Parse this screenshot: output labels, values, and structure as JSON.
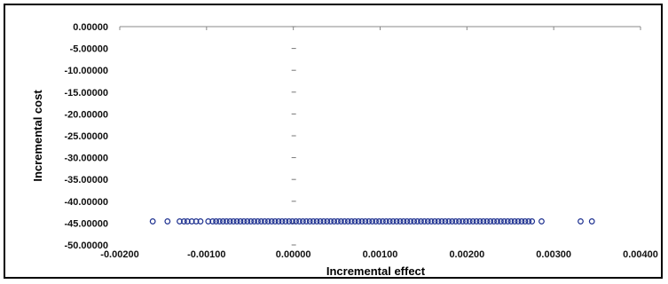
{
  "chart_data": {
    "type": "scatter",
    "title": "",
    "xlabel": "Incremental effect",
    "ylabel": "Incremental cost",
    "xlim": [
      -0.002,
      0.004
    ],
    "ylim": [
      -50,
      0
    ],
    "x_ticks": [
      "-0.00200",
      "-0.00100",
      "0.00000",
      "0.00100",
      "0.00200",
      "0.00300",
      "0.00400"
    ],
    "y_ticks": [
      "0.00000",
      "-5.00000",
      "-10.00000",
      "-15.00000",
      "-20.00000",
      "-25.00000",
      "-30.00000",
      "-35.00000",
      "-40.00000",
      "-45.00000",
      "-50.00000"
    ],
    "grid": false,
    "marker": "hollow-circle",
    "marker_color": "#1c2f8f",
    "series": [
      {
        "x": [
          -0.00162,
          -0.00145,
          -0.00131,
          -0.00126,
          -0.00122,
          -0.00117,
          -0.00112,
          -0.00107,
          -0.00098,
          -0.00093,
          -0.00089,
          -0.00085,
          -0.00081,
          -0.00077,
          -0.00073,
          -0.00069,
          -0.00065,
          -0.00061,
          -0.00057,
          -0.00053,
          -0.00049,
          -0.00045,
          -0.00041,
          -0.00037,
          -0.00033,
          -0.00029,
          -0.00025,
          -0.00021,
          -0.00017,
          -0.00013,
          -9e-05,
          -5e-05,
          -1e-05,
          3e-05,
          7e-05,
          0.00011,
          0.00015,
          0.00019,
          0.00023,
          0.00027,
          0.00031,
          0.00035,
          0.00039,
          0.00043,
          0.00047,
          0.00051,
          0.00055,
          0.00059,
          0.00063,
          0.00067,
          0.00071,
          0.00075,
          0.00079,
          0.00083,
          0.00087,
          0.00091,
          0.00095,
          0.00099,
          0.00103,
          0.00107,
          0.00111,
          0.00115,
          0.00119,
          0.00123,
          0.00127,
          0.00131,
          0.00135,
          0.00139,
          0.00143,
          0.00147,
          0.00151,
          0.00155,
          0.00159,
          0.00163,
          0.00167,
          0.00171,
          0.00175,
          0.00179,
          0.00183,
          0.00187,
          0.00191,
          0.00195,
          0.00199,
          0.00203,
          0.00207,
          0.00211,
          0.00215,
          0.00219,
          0.00223,
          0.00227,
          0.00231,
          0.00235,
          0.00239,
          0.00243,
          0.00247,
          0.00251,
          0.00255,
          0.00259,
          0.00263,
          0.00267,
          0.00271,
          0.00275,
          0.00286,
          0.00331,
          0.00344
        ],
        "y": [
          -44.6,
          -44.6,
          -44.6,
          -44.6,
          -44.6,
          -44.6,
          -44.6,
          -44.6,
          -44.6,
          -44.6,
          -44.6,
          -44.6,
          -44.6,
          -44.6,
          -44.6,
          -44.6,
          -44.6,
          -44.6,
          -44.6,
          -44.6,
          -44.6,
          -44.6,
          -44.6,
          -44.6,
          -44.6,
          -44.6,
          -44.6,
          -44.6,
          -44.6,
          -44.6,
          -44.6,
          -44.6,
          -44.6,
          -44.6,
          -44.6,
          -44.6,
          -44.6,
          -44.6,
          -44.6,
          -44.6,
          -44.6,
          -44.6,
          -44.6,
          -44.6,
          -44.6,
          -44.6,
          -44.6,
          -44.6,
          -44.6,
          -44.6,
          -44.6,
          -44.6,
          -44.6,
          -44.6,
          -44.6,
          -44.6,
          -44.6,
          -44.6,
          -44.6,
          -44.6,
          -44.6,
          -44.6,
          -44.6,
          -44.6,
          -44.6,
          -44.6,
          -44.6,
          -44.6,
          -44.6,
          -44.6,
          -44.6,
          -44.6,
          -44.6,
          -44.6,
          -44.6,
          -44.6,
          -44.6,
          -44.6,
          -44.6,
          -44.6,
          -44.6,
          -44.6,
          -44.6,
          -44.6,
          -44.6,
          -44.6,
          -44.6,
          -44.6,
          -44.6,
          -44.6,
          -44.6,
          -44.6,
          -44.6,
          -44.6,
          -44.6,
          -44.6,
          -44.6,
          -44.6,
          -44.6,
          -44.6,
          -44.6,
          -44.6,
          -44.6,
          -44.6,
          -44.6
        ]
      }
    ]
  }
}
